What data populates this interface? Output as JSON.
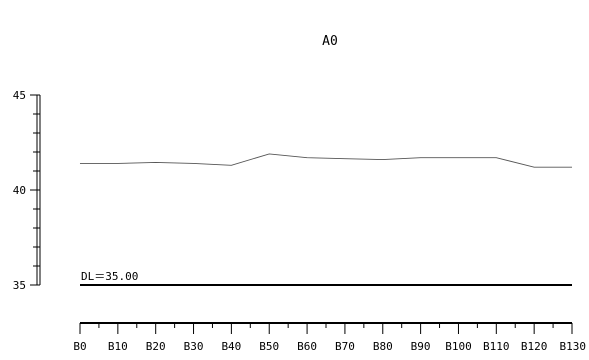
{
  "chart_data": {
    "type": "line",
    "title": "A0",
    "categories": [
      "B0",
      "B10",
      "B20",
      "B30",
      "B40",
      "B50",
      "B60",
      "B70",
      "B80",
      "B90",
      "B100",
      "B110",
      "B120",
      "B130"
    ],
    "series": [
      {
        "values": [
          41.4,
          41.4,
          41.45,
          41.4,
          41.3,
          41.9,
          41.7,
          41.65,
          41.6,
          41.7,
          41.7,
          41.7,
          41.2,
          41.2
        ]
      }
    ],
    "ylim": [
      35,
      45
    ],
    "y_ticks": [
      35,
      40,
      45
    ],
    "datum": {
      "label": "DL＝35.00",
      "value": 35
    },
    "colors": {
      "series": "#555555",
      "axis": "#000000",
      "datum": "#000000"
    }
  }
}
